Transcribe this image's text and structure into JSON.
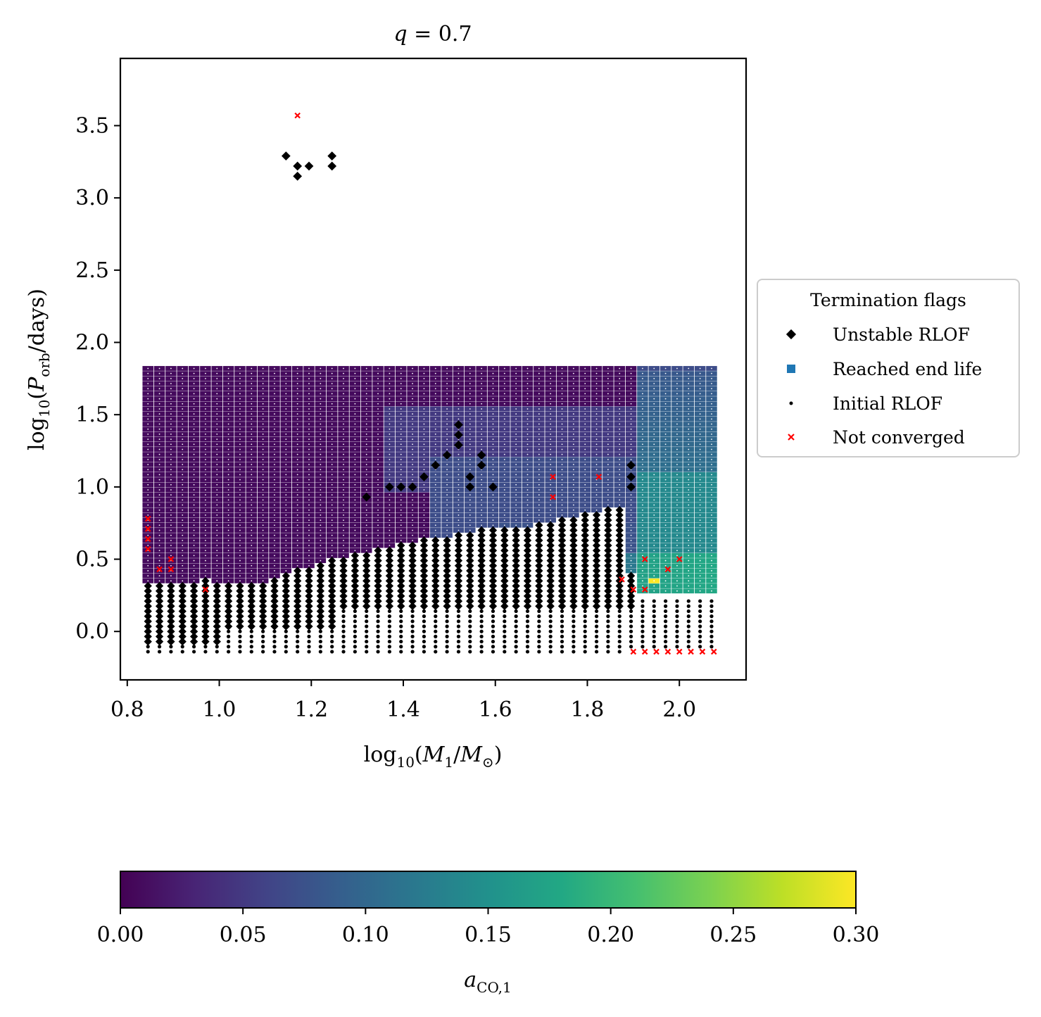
{
  "chart_data": {
    "type": "scatter",
    "title": "q = 0.7",
    "xlabel": "log10(M1/M⊙)",
    "ylabel": "log10(Porb/days)",
    "xlim": [
      0.785,
      2.145
    ],
    "ylim": [
      -0.335,
      3.965
    ],
    "xticks": [
      0.8,
      1.0,
      1.2,
      1.4,
      1.6,
      1.8,
      2.0
    ],
    "xtick_labels": [
      "0.8",
      "1.0",
      "1.2",
      "1.4",
      "1.6",
      "1.8",
      "2.0"
    ],
    "yticks": [
      0.0,
      0.5,
      1.0,
      1.5,
      2.0,
      2.5,
      3.0,
      3.5
    ],
    "ytick_labels": [
      "0.0",
      "0.5",
      "1.0",
      "1.5",
      "2.0",
      "2.5",
      "3.0",
      "3.5"
    ],
    "grid": false,
    "legend": {
      "title": "Termination flags",
      "placement": "center-right outside",
      "entries": [
        {
          "label": "Unstable RLOF",
          "marker": "diamond",
          "color": "#000000"
        },
        {
          "label": "Reached end life",
          "marker": "square",
          "color": "#1f77b4"
        },
        {
          "label": "Initial RLOF",
          "marker": "dot",
          "color": "#000000"
        },
        {
          "label": "Not converged",
          "marker": "x",
          "color": "#ff0000"
        }
      ]
    },
    "grid_x": {
      "start": 0.845,
      "step": 0.025,
      "count": 50
    },
    "grid_y": {
      "start": -0.14,
      "step": 0.035,
      "count": 57
    },
    "colorbar": {
      "label": "aCO,1",
      "range": [
        0.0,
        0.3
      ],
      "ticks": [
        0.0,
        0.05,
        0.1,
        0.15,
        0.2,
        0.25,
        0.3
      ],
      "tick_labels": [
        "0.00",
        "0.05",
        "0.10",
        "0.15",
        "0.20",
        "0.25",
        "0.30"
      ],
      "colormap": "viridis"
    },
    "not_converged_points": [
      [
        1.17,
        3.57
      ],
      [
        0.845,
        0.78
      ],
      [
        0.845,
        0.71
      ],
      [
        0.845,
        0.64
      ],
      [
        0.845,
        0.57
      ],
      [
        0.87,
        0.43
      ],
      [
        0.895,
        0.5
      ],
      [
        0.895,
        0.43
      ],
      [
        0.97,
        0.29
      ],
      [
        1.725,
        1.07
      ],
      [
        1.725,
        0.93
      ],
      [
        1.825,
        1.07
      ],
      [
        1.875,
        0.36
      ],
      [
        1.9,
        0.29
      ],
      [
        1.925,
        0.29
      ],
      [
        1.925,
        0.5
      ],
      [
        1.975,
        0.43
      ],
      [
        2.0,
        0.5
      ],
      [
        1.9,
        -0.14
      ],
      [
        1.925,
        -0.14
      ],
      [
        1.95,
        -0.14
      ],
      [
        1.975,
        -0.14
      ],
      [
        2.0,
        -0.14
      ],
      [
        2.025,
        -0.14
      ],
      [
        2.05,
        -0.14
      ],
      [
        2.075,
        -0.14
      ]
    ],
    "unstable_islands": [
      [
        1.145,
        3.29
      ],
      [
        1.17,
        3.22
      ],
      [
        1.17,
        3.15
      ],
      [
        1.195,
        3.22
      ],
      [
        1.245,
        3.29
      ],
      [
        1.245,
        3.22
      ],
      [
        1.52,
        1.43
      ],
      [
        1.52,
        1.36
      ],
      [
        1.52,
        1.29
      ],
      [
        1.495,
        1.22
      ],
      [
        1.57,
        1.22
      ],
      [
        1.57,
        1.15
      ],
      [
        1.595,
        1.0
      ],
      [
        1.42,
        1.0
      ],
      [
        1.395,
        1.0
      ],
      [
        1.37,
        1.0
      ],
      [
        1.32,
        0.93
      ],
      [
        1.47,
        1.15
      ],
      [
        1.445,
        1.07
      ],
      [
        1.545,
        1.07
      ],
      [
        1.545,
        1.0
      ],
      [
        1.895,
        1.15
      ],
      [
        1.895,
        1.07
      ],
      [
        1.895,
        1.0
      ]
    ]
  }
}
